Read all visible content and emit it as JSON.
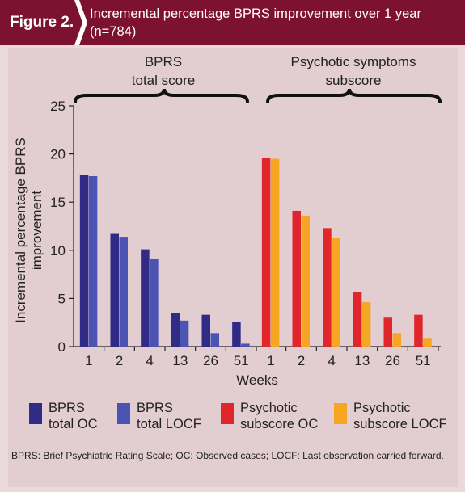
{
  "header": {
    "figure_label": "Figure 2.",
    "title": "Incremental percentage BPRS improvement over 1 year (n=784)"
  },
  "colors": {
    "header_bg": "#7d1230",
    "panel_bg": "#e2cdd1",
    "bprs_oc": "#2f2b86",
    "bprs_locf": "#4c54b3",
    "psy_oc": "#e0262b",
    "psy_locf": "#f6a623"
  },
  "chart_data": {
    "type": "bar",
    "ylabel": "Incremental percentage BPRS improvement",
    "xlabel": "Weeks",
    "ylim": [
      0,
      25
    ],
    "yticks": [
      0,
      5,
      10,
      15,
      20,
      25
    ],
    "groups": [
      {
        "label": "BPRS total score",
        "categories": [
          "1",
          "2",
          "4",
          "13",
          "26",
          "51"
        ],
        "series": [
          {
            "name": "BPRS total OC",
            "color_key": "bprs_oc",
            "values": [
              17.8,
              11.7,
              10.1,
              3.5,
              3.3,
              2.6
            ]
          },
          {
            "name": "BPRS total LOCF",
            "color_key": "bprs_locf",
            "values": [
              17.7,
              11.4,
              9.1,
              2.7,
              1.4,
              0.3
            ]
          }
        ]
      },
      {
        "label": "Psychotic symptoms subscore",
        "categories": [
          "1",
          "2",
          "4",
          "13",
          "26",
          "51"
        ],
        "series": [
          {
            "name": "Psychotic subscore OC",
            "color_key": "psy_oc",
            "values": [
              19.6,
              14.1,
              12.3,
              5.7,
              3.0,
              3.3
            ]
          },
          {
            "name": "Psychotic subscore LOCF",
            "color_key": "psy_locf",
            "values": [
              19.5,
              13.6,
              11.3,
              4.6,
              1.4,
              0.9
            ]
          }
        ]
      }
    ],
    "legend": [
      {
        "label": "BPRS\ntotal OC",
        "color_key": "bprs_oc"
      },
      {
        "label": "BPRS\ntotal LOCF",
        "color_key": "bprs_locf"
      },
      {
        "label": "Psychotic\nsubscore OC",
        "color_key": "psy_oc"
      },
      {
        "label": "Psychotic\nsubscore LOCF",
        "color_key": "psy_locf"
      }
    ]
  },
  "footnote": "BPRS: Brief Psychiatric Rating Scale; OC: Observed cases; LOCF: Last observation carried forward."
}
